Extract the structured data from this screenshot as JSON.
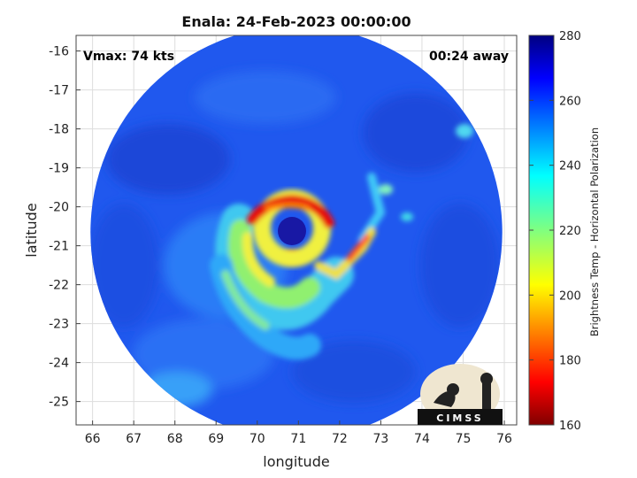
{
  "chart_data": {
    "type": "heatmap",
    "title": "Enala: 24-Feb-2023 00:00:00",
    "xlabel": "longitude",
    "ylabel": "latitude",
    "xlim": [
      65.6,
      76.3
    ],
    "ylim": [
      -25.6,
      -15.6
    ],
    "xticks": [
      "66",
      "67",
      "68",
      "69",
      "70",
      "71",
      "72",
      "73",
      "74",
      "75",
      "76"
    ],
    "yticks": [
      "-16",
      "-17",
      "-18",
      "-19",
      "-20",
      "-21",
      "-22",
      "-23",
      "-24",
      "-25"
    ],
    "grid": true,
    "colorbar": {
      "label": "Brightness Temp - Horizontal Polarization",
      "range": [
        160,
        280
      ],
      "ticks": [
        "280",
        "260",
        "240",
        "220",
        "200",
        "180",
        "160"
      ],
      "colormap": "jet"
    },
    "annotations": {
      "vmax": "Vmax: 74 kts",
      "time_offset": "00:24 away"
    },
    "storm_center": {
      "lon": 70.85,
      "lat": -20.7
    },
    "swath": {
      "center_lon": 70.95,
      "center_lat": -20.65,
      "radius_deg": 5.0
    },
    "logo_text": "CIMSS"
  },
  "colors": {
    "background_field": "#1e5cf0",
    "eye": "#1a1aa8",
    "eyewall": "#e01010",
    "grid": "#dddddd"
  }
}
